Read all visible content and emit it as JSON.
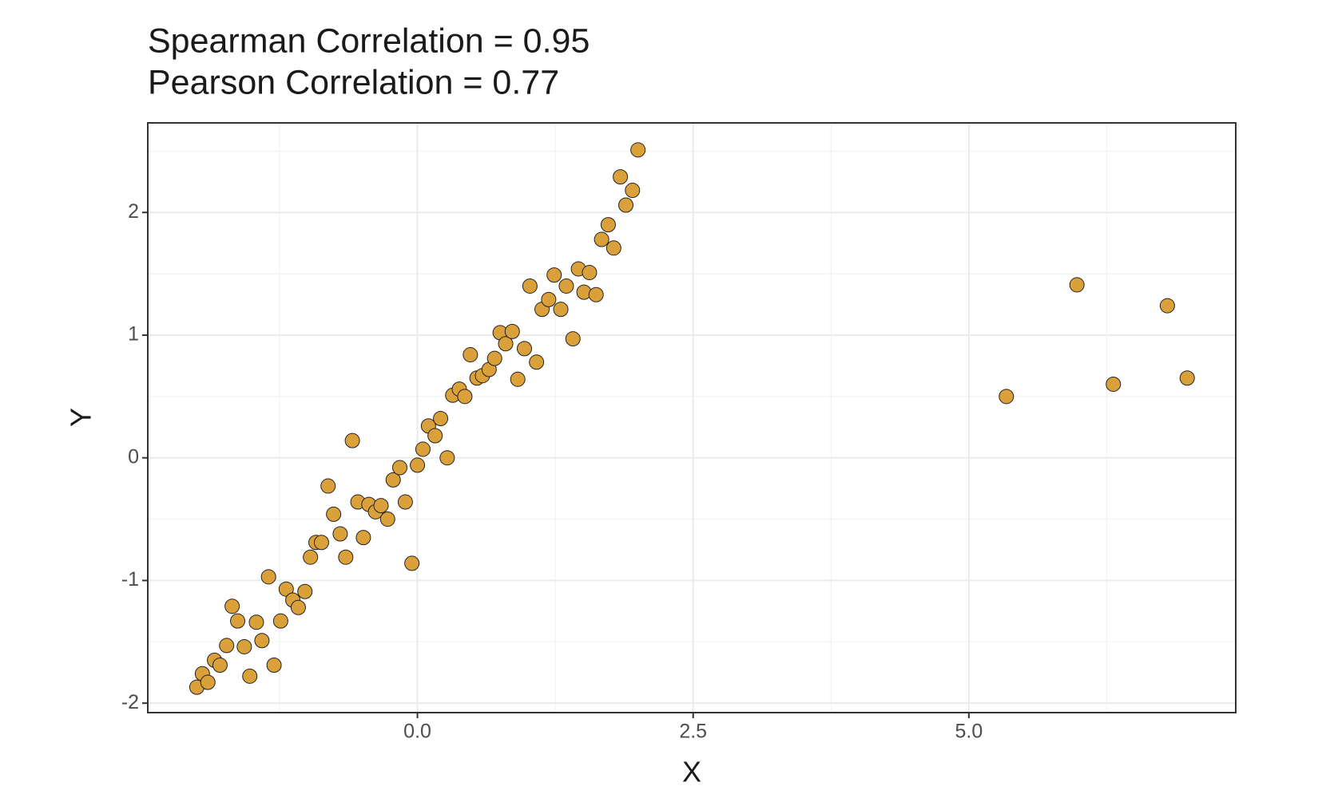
{
  "chart_data": {
    "type": "scatter",
    "title": "Spearman Correlation = 0.95",
    "subtitle": "Pearson Correlation = 0.77",
    "x_label": "X",
    "y_label": "Y",
    "color": "#daa03a",
    "grid": true,
    "xlim": [
      -2.445,
      7.42
    ],
    "ylim": [
      -2.077,
      2.73
    ],
    "xticks": [
      {
        "value": 0,
        "label": "0.0"
      },
      {
        "value": 2.5,
        "label": "2.5"
      },
      {
        "value": 5,
        "label": "5.0"
      }
    ],
    "yticks": [
      -2,
      -1,
      0,
      1,
      2
    ],
    "x_minor_grid": [
      -1.25,
      1.25,
      3.75,
      6.25
    ],
    "y_minor_grid": [
      -1.5,
      -0.5,
      0.5,
      1.5,
      2.5
    ],
    "x": [
      -2.0,
      -1.95,
      -1.9,
      -1.84,
      -1.79,
      -1.73,
      -1.68,
      -1.63,
      -1.57,
      -1.52,
      -1.46,
      -1.41,
      -1.35,
      -1.3,
      -1.24,
      -1.19,
      -1.13,
      -1.08,
      -1.02,
      -0.97,
      -0.92,
      -0.87,
      -0.81,
      -0.76,
      -0.7,
      -0.65,
      -0.59,
      -0.54,
      -0.49,
      -0.44,
      -0.38,
      -0.33,
      -0.27,
      -0.22,
      -0.16,
      -0.11,
      -0.05,
      0.0,
      0.05,
      0.1,
      0.16,
      0.21,
      0.27,
      0.32,
      0.38,
      0.43,
      0.48,
      0.54,
      0.59,
      0.65,
      0.7,
      0.75,
      0.8,
      0.86,
      0.91,
      0.97,
      1.02,
      1.08,
      1.13,
      1.19,
      1.24,
      1.3,
      1.35,
      1.41,
      1.46,
      1.51,
      1.56,
      1.62,
      1.67,
      1.73,
      1.78,
      1.84,
      1.89,
      1.95,
      2.0,
      5.34,
      5.98,
      6.31,
      6.8,
      6.98
    ],
    "values": [
      -1.87,
      -1.76,
      -1.83,
      -1.65,
      -1.69,
      -1.53,
      -1.21,
      -1.33,
      -1.54,
      -1.78,
      -1.34,
      -1.49,
      -0.97,
      -1.69,
      -1.33,
      -1.07,
      -1.16,
      -1.22,
      -1.09,
      -0.81,
      -0.69,
      -0.69,
      -0.23,
      -0.46,
      -0.62,
      -0.81,
      0.14,
      -0.36,
      -0.65,
      -0.38,
      -0.44,
      -0.39,
      -0.5,
      -0.18,
      -0.08,
      -0.36,
      -0.86,
      -0.06,
      0.07,
      0.26,
      0.18,
      0.32,
      0.0,
      0.51,
      0.56,
      0.5,
      0.84,
      0.65,
      0.67,
      0.72,
      0.81,
      1.02,
      0.93,
      1.03,
      0.64,
      0.89,
      1.4,
      0.78,
      1.21,
      1.29,
      1.49,
      1.21,
      1.4,
      0.97,
      1.54,
      1.35,
      1.51,
      1.33,
      1.78,
      1.9,
      1.71,
      2.29,
      2.06,
      2.18,
      2.51,
      0.5,
      1.41,
      0.6,
      1.24,
      0.65
    ]
  }
}
